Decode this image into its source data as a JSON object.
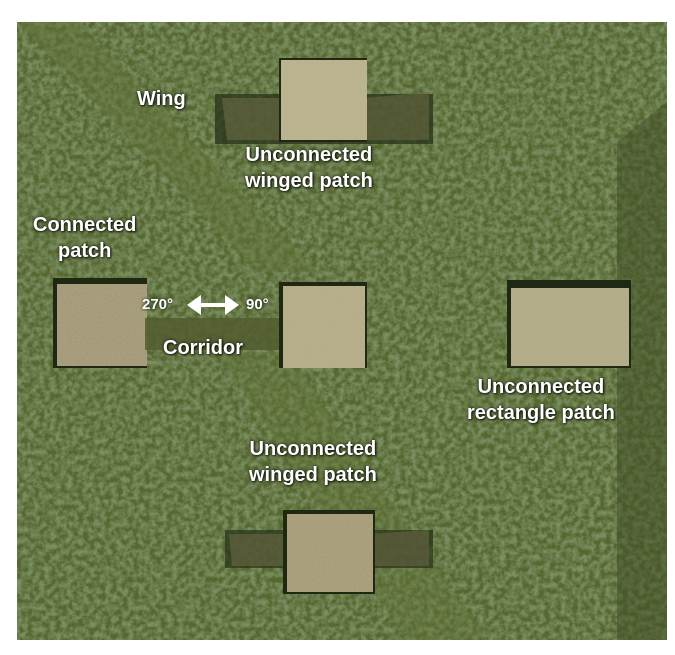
{
  "labels": {
    "wing": "Wing",
    "unconnected_winged_top": [
      "Unconnected",
      "winged patch"
    ],
    "connected_patch": [
      "Connected",
      "patch"
    ],
    "corridor": "Corridor",
    "deg_left": "270°",
    "deg_right": "90°",
    "unconnected_rectangle": [
      "Unconnected",
      "rectangle patch"
    ],
    "unconnected_winged_bottom": [
      "Unconnected",
      "winged patch"
    ]
  },
  "colors": {
    "forest_dark": "#3a4a22",
    "forest_mid": "#4e5f2e",
    "forest_light": "#66763d",
    "clearing": "#b3ac86",
    "clearing_dark": "#9c9270",
    "shadow": "#1f2812",
    "label_text": "#ffffff"
  },
  "icons": {
    "arrow": "double-headed-arrow-icon"
  }
}
